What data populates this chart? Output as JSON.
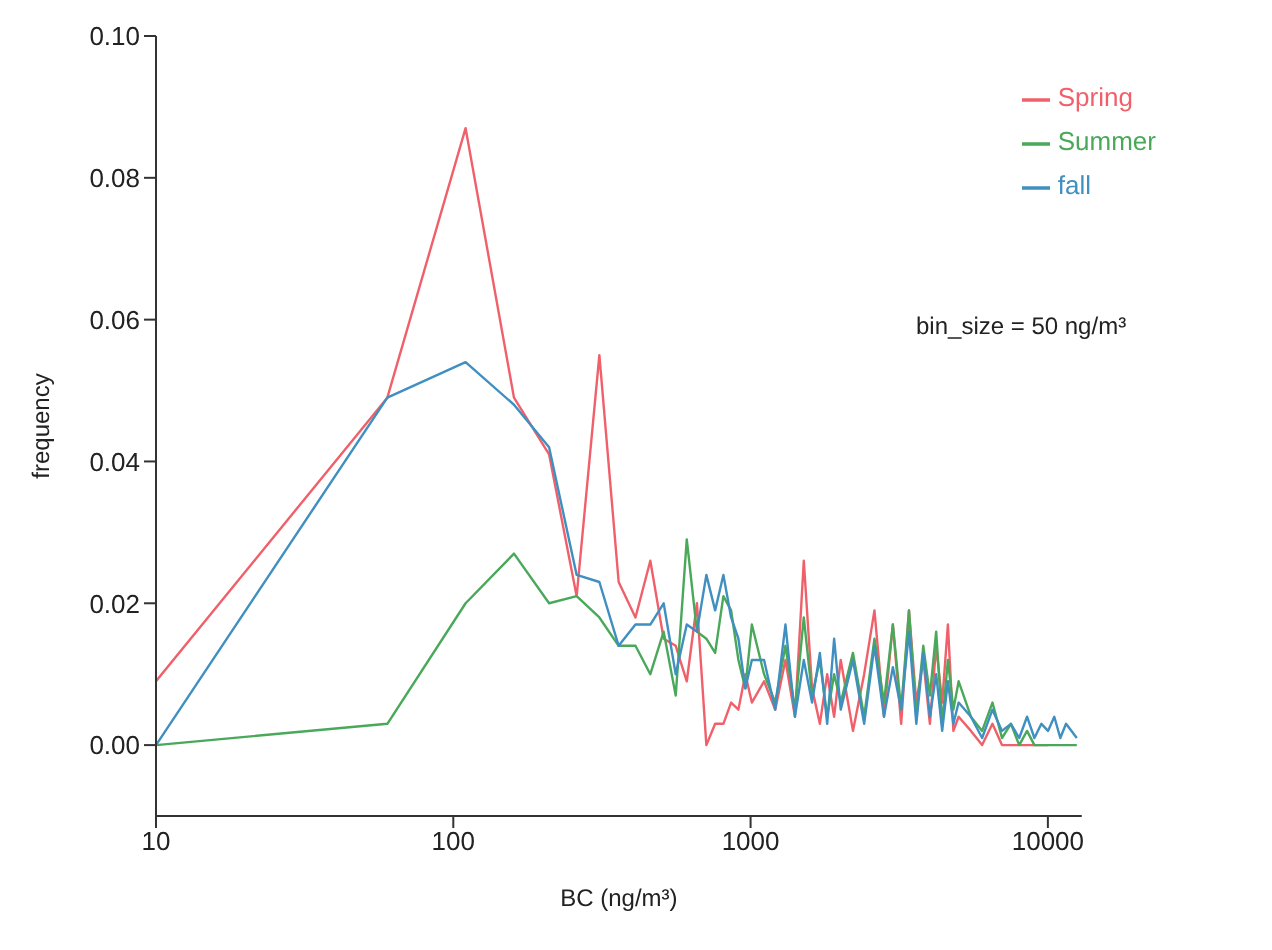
{
  "chart_data": {
    "type": "line",
    "xlabel": "BC (ng/m³)",
    "ylabel": "frequency",
    "annotations": [
      "bin_size = 50 ng/m³"
    ],
    "log": "x",
    "grid": false,
    "legend": "top right",
    "marker": "none",
    "line_style": "solid",
    "x": [
      10,
      60,
      110,
      160,
      210,
      260,
      310,
      360,
      410,
      460,
      510,
      560,
      610,
      660,
      710,
      760,
      810,
      860,
      910,
      960,
      1010,
      1110,
      1210,
      1310,
      1410,
      1510,
      1610,
      1710,
      1810,
      1910,
      2010,
      2210,
      2410,
      2610,
      2810,
      3010,
      3210,
      3410,
      3610,
      3810,
      4010,
      4210,
      4410,
      4610,
      4810,
      5010,
      5510,
      6010,
      6510,
      7010,
      7510,
      8010,
      8510,
      9010,
      9510,
      10010,
      10510,
      11010,
      11510,
      12010,
      12510
    ],
    "xlim": [
      10,
      13000
    ],
    "xticks": [
      10,
      100,
      1000,
      10000
    ],
    "ylim": [
      -0.01,
      0.1
    ],
    "yticks": [
      {
        "value": 0,
        "label": "0.00"
      },
      {
        "value": 0.02,
        "label": "0.02"
      },
      {
        "value": 0.04,
        "label": "0.04"
      },
      {
        "value": 0.06,
        "label": "0.06"
      },
      {
        "value": 0.08,
        "label": "0.08"
      },
      {
        "value": 0.1,
        "label": "0.10"
      }
    ],
    "series": [
      {
        "name": "Spring",
        "color": "#f0606a",
        "values": [
          0.009,
          0.049,
          0.087,
          0.049,
          0.041,
          0.021,
          0.055,
          0.023,
          0.018,
          0.026,
          0.015,
          0.014,
          0.009,
          0.02,
          0,
          0.003,
          0.003,
          0.006,
          0.005,
          0.01,
          0.006,
          0.009,
          0.005,
          0.012,
          0.004,
          0.026,
          0.008,
          0.003,
          0.01,
          0.004,
          0.012,
          0.002,
          0.01,
          0.019,
          0.004,
          0.017,
          0.003,
          0.019,
          0.006,
          0.012,
          0.003,
          0.014,
          0.006,
          0.017,
          0.002,
          0.004,
          0.002,
          0,
          0.003,
          0,
          0,
          0,
          0,
          0,
          0,
          0,
          null,
          null,
          null,
          null,
          null
        ]
      },
      {
        "name": "Summer",
        "color": "#4aa85a",
        "values": [
          0,
          0.003,
          0.02,
          0.027,
          0.02,
          0.021,
          0.018,
          0.014,
          0.014,
          0.01,
          0.016,
          0.007,
          0.029,
          0.016,
          0.015,
          0.013,
          0.021,
          0.019,
          0.012,
          0.008,
          0.017,
          0.01,
          0.006,
          0.014,
          0.005,
          0.018,
          0.007,
          0.012,
          0.004,
          0.01,
          0.006,
          0.013,
          0.004,
          0.015,
          0.006,
          0.017,
          0.005,
          0.019,
          0.004,
          0.014,
          0.007,
          0.016,
          0.003,
          0.012,
          0.005,
          0.009,
          0.004,
          0.002,
          0.006,
          0.001,
          0.003,
          0,
          0.002,
          0,
          0,
          0,
          0,
          0,
          0,
          0,
          0
        ]
      },
      {
        "name": "fall",
        "color": "#3f8fc0",
        "values": [
          0,
          0.049,
          0.054,
          0.048,
          0.042,
          0.024,
          0.023,
          0.014,
          0.017,
          0.017,
          0.02,
          0.01,
          0.017,
          0.016,
          0.024,
          0.019,
          0.024,
          0.018,
          0.015,
          0.008,
          0.012,
          0.012,
          0.005,
          0.017,
          0.004,
          0.012,
          0.006,
          0.013,
          0.003,
          0.015,
          0.005,
          0.012,
          0.003,
          0.014,
          0.004,
          0.011,
          0.005,
          0.016,
          0.003,
          0.013,
          0.004,
          0.01,
          0.002,
          0.009,
          0.003,
          0.006,
          0.004,
          0.001,
          0.005,
          0.002,
          0.003,
          0.001,
          0.004,
          0.001,
          0.003,
          0.002,
          0.004,
          0.001,
          0.003,
          0.002,
          0.001
        ]
      }
    ]
  }
}
